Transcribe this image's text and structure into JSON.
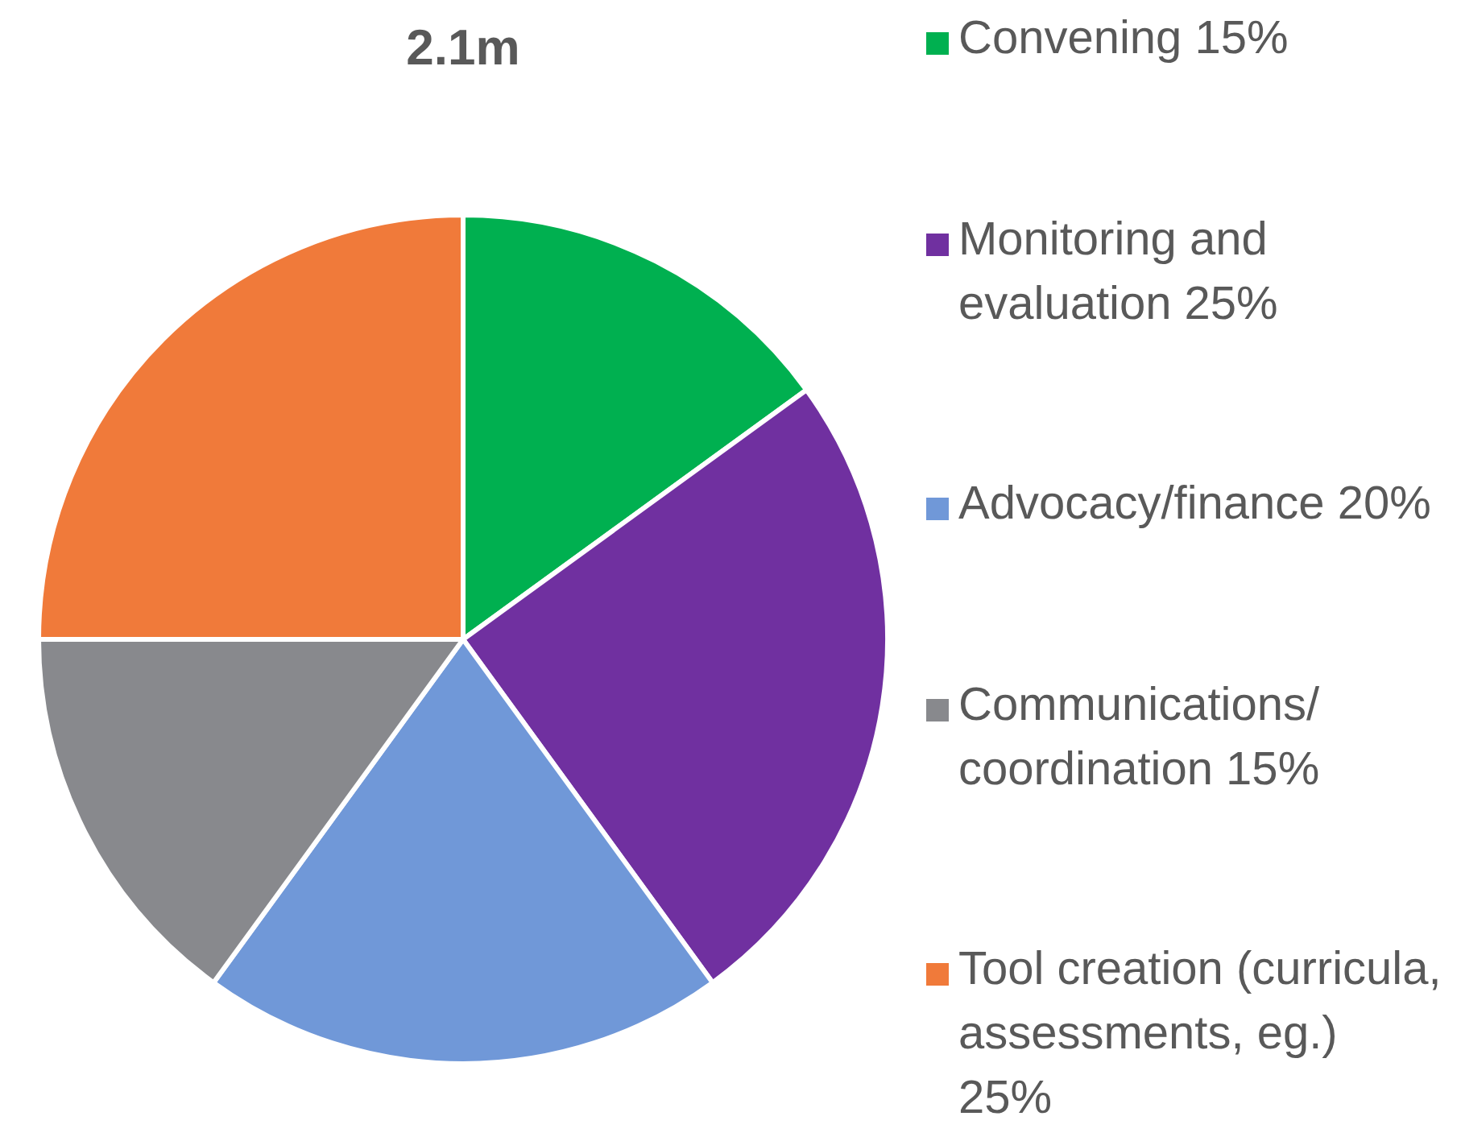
{
  "chart_data": {
    "type": "pie",
    "title": "2.1m",
    "categories": [
      "Convening 15%",
      "Monitoring and evaluation 25%",
      "Advocacy/finance 20%",
      "Communications/coordination 15%",
      "Tool creation (curricula, assessments, eg.) 25%"
    ],
    "values": [
      15,
      25,
      20,
      15,
      25
    ],
    "colors": [
      "#00b050",
      "#7030a0",
      "#7098d8",
      "#88898d",
      "#f07a3a"
    ],
    "legend": "right"
  }
}
